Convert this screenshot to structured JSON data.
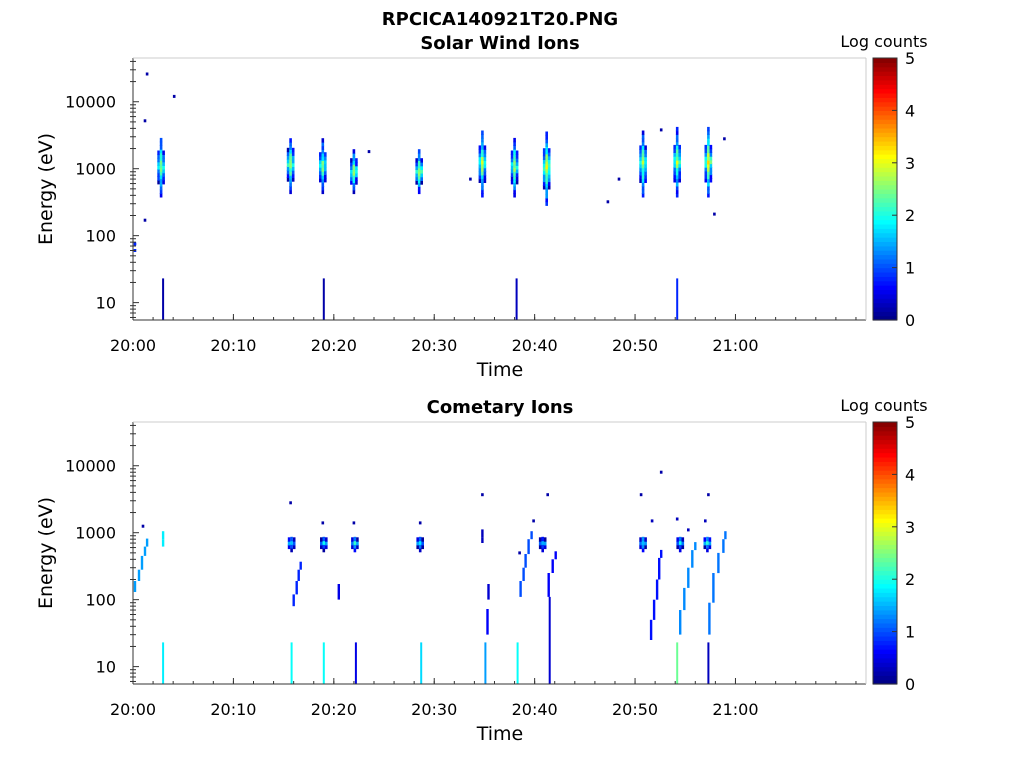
{
  "figure": {
    "title": "RPCICA140921T20.PNG"
  },
  "chart_data": [
    {
      "type": "heatmap",
      "title": "Solar Wind Ions",
      "xlabel": "Time",
      "ylabel": "Energy (eV)",
      "y_scale": "log",
      "ylim": [
        5.5,
        45000
      ],
      "x_time_range": [
        "20:00",
        "21:13"
      ],
      "x_ticks": [
        "20:00",
        "20:10",
        "20:20",
        "20:30",
        "20:40",
        "20:50",
        "21:00"
      ],
      "y_ticks": [
        "10",
        "100",
        "1000",
        "10000"
      ],
      "colorbar": {
        "title": "Log counts",
        "range": [
          0,
          5
        ],
        "ticks": [
          "0",
          "1",
          "2",
          "3",
          "4",
          "5"
        ],
        "colormap": "jet"
      },
      "bursts": [
        {
          "t": "20:02.8",
          "e_min": 400,
          "e_max": 3000,
          "peak": 2.6
        },
        {
          "t": "20:15.7",
          "e_min": 450,
          "e_max": 3000,
          "peak": 2.8
        },
        {
          "t": "20:18.9",
          "e_min": 450,
          "e_max": 2700,
          "peak": 2.6
        },
        {
          "t": "20:22.0",
          "e_min": 450,
          "e_max": 1900,
          "peak": 2.8
        },
        {
          "t": "20:28.5",
          "e_min": 450,
          "e_max": 1900,
          "peak": 2.9
        },
        {
          "t": "20:34.8",
          "e_min": 400,
          "e_max": 3700,
          "peak": 2.8
        },
        {
          "t": "20:38.0",
          "e_min": 400,
          "e_max": 3000,
          "peak": 2.7
        },
        {
          "t": "20:41.2",
          "e_min": 300,
          "e_max": 3700,
          "peak": 3.1
        },
        {
          "t": "20:50.8",
          "e_min": 400,
          "e_max": 3700,
          "peak": 2.7
        },
        {
          "t": "20:54.2",
          "e_min": 400,
          "e_max": 4000,
          "peak": 2.8
        },
        {
          "t": "20:57.3",
          "e_min": 400,
          "e_max": 4000,
          "peak": 3.2
        }
      ],
      "spikes": [
        {
          "t": "20:03.0",
          "e_min": 5.5,
          "e_max": 23,
          "value": 0.2
        },
        {
          "t": "20:19.0",
          "e_min": 5.5,
          "e_max": 23,
          "value": 0.2
        },
        {
          "t": "20:38.2",
          "e_min": 5.5,
          "e_max": 23,
          "value": 0.3
        },
        {
          "t": "20:54.2",
          "e_min": 5.5,
          "e_max": 23,
          "value": 0.8
        }
      ],
      "isolated_points": [
        {
          "t": "20:01.4",
          "e": 26000,
          "value": 0.2
        },
        {
          "t": "20:01.2",
          "e": 5200,
          "value": 0.2
        },
        {
          "t": "20:04.1",
          "e": 12000,
          "value": 0.2
        },
        {
          "t": "20:00.2",
          "e": 60,
          "value": 0.8
        },
        {
          "t": "20:00.2",
          "e": 75,
          "value": 0.8
        },
        {
          "t": "20:01.2",
          "e": 170,
          "value": 0.2
        },
        {
          "t": "20:23.5",
          "e": 1800,
          "value": 0.2
        },
        {
          "t": "20:33.6",
          "e": 700,
          "value": 0.2
        },
        {
          "t": "20:47.3",
          "e": 320,
          "value": 0.2
        },
        {
          "t": "20:48.4",
          "e": 700,
          "value": 0.2
        },
        {
          "t": "20:52.6",
          "e": 3800,
          "value": 0.2
        },
        {
          "t": "20:58.9",
          "e": 2800,
          "value": 0.2
        },
        {
          "t": "20:57.9",
          "e": 210,
          "value": 0.2
        }
      ]
    },
    {
      "type": "heatmap",
      "title": "Cometary Ions",
      "xlabel": "Time",
      "ylabel": "Energy (eV)",
      "y_scale": "log",
      "ylim": [
        5.5,
        45000
      ],
      "x_time_range": [
        "20:00",
        "21:13"
      ],
      "x_ticks": [
        "20:00",
        "20:10",
        "20:20",
        "20:30",
        "20:40",
        "20:50",
        "21:00"
      ],
      "y_ticks": [
        "10",
        "100",
        "1000",
        "10000"
      ],
      "colorbar": {
        "title": "Log counts",
        "range": [
          0,
          5
        ],
        "ticks": [
          "0",
          "1",
          "2",
          "3",
          "4",
          "5"
        ],
        "colormap": "jet"
      },
      "bursts": [
        {
          "t": "20:15.8",
          "e_min": 550,
          "e_max": 900,
          "peak": 1.9
        },
        {
          "t": "20:19.0",
          "e_min": 550,
          "e_max": 900,
          "peak": 1.9
        },
        {
          "t": "20:22.1",
          "e_min": 550,
          "e_max": 900,
          "peak": 1.9
        },
        {
          "t": "20:28.6",
          "e_min": 550,
          "e_max": 900,
          "peak": 1.9
        },
        {
          "t": "20:40.8",
          "e_min": 550,
          "e_max": 900,
          "peak": 1.8
        },
        {
          "t": "20:50.8",
          "e_min": 550,
          "e_max": 900,
          "peak": 1.9
        },
        {
          "t": "20:54.5",
          "e_min": 550,
          "e_max": 900,
          "peak": 1.8
        },
        {
          "t": "20:57.2",
          "e_min": 550,
          "e_max": 900,
          "peak": 1.9
        }
      ],
      "spikes": [
        {
          "t": "20:03.0",
          "e_min": 5.5,
          "e_max": 23,
          "value": 1.8
        },
        {
          "t": "20:15.8",
          "e_min": 5.5,
          "e_max": 23,
          "value": 1.9
        },
        {
          "t": "20:19.0",
          "e_min": 5.5,
          "e_max": 23,
          "value": 1.9
        },
        {
          "t": "20:22.2",
          "e_min": 5.5,
          "e_max": 23,
          "value": 0.5
        },
        {
          "t": "20:28.7",
          "e_min": 5.5,
          "e_max": 23,
          "value": 1.7
        },
        {
          "t": "20:35.1",
          "e_min": 5.5,
          "e_max": 23,
          "value": 1.4
        },
        {
          "t": "20:38.3",
          "e_min": 5.5,
          "e_max": 23,
          "value": 1.9
        },
        {
          "t": "20:41.5",
          "e_min": 5.5,
          "e_max": 110,
          "value": 0.4
        },
        {
          "t": "20:54.2",
          "e_min": 5.5,
          "e_max": 23,
          "value": 2.4
        },
        {
          "t": "20:57.3",
          "e_min": 5.5,
          "e_max": 23,
          "value": 0.3
        }
      ],
      "dispersive_tracks": [
        {
          "points": [
            [
              "20:00.2",
              130
            ],
            [
              "20:00.6",
              190
            ],
            [
              "20:00.9",
              280
            ],
            [
              "20:01.2",
              450
            ],
            [
              "20:01.4",
              620
            ]
          ],
          "value": 1.4
        },
        {
          "points": [
            [
              "20:03.0",
              620
            ],
            [
              "20:03.0",
              800
            ]
          ],
          "value": 1.8
        },
        {
          "points": [
            [
              "20:16.0",
              80
            ],
            [
              "20:16.3",
              120
            ],
            [
              "20:16.5",
              190
            ],
            [
              "20:16.7",
              280
            ]
          ],
          "value": 0.8
        },
        {
          "points": [
            [
              "20:20.5",
              100
            ],
            [
              "20:20.5",
              130
            ]
          ],
          "value": 0.5
        },
        {
          "points": [
            [
              "20:34.8",
              700
            ],
            [
              "20:34.8",
              850
            ]
          ],
          "value": 0.3
        },
        {
          "points": [
            [
              "20:35.3",
              30
            ],
            [
              "20:35.3",
              55
            ]
          ],
          "value": 0.6
        },
        {
          "points": [
            [
              "20:35.4",
              100
            ],
            [
              "20:35.4",
              130
            ]
          ],
          "value": 0.4
        },
        {
          "points": [
            [
              "20:38.6",
              110
            ],
            [
              "20:38.9",
              190
            ],
            [
              "20:39.1",
              300
            ],
            [
              "20:39.4",
              480
            ],
            [
              "20:39.7",
              800
            ]
          ],
          "value": 1.0
        },
        {
          "points": [
            [
              "20:41.4",
              110
            ],
            [
              "20:41.8",
              250
            ],
            [
              "20:42.1",
              400
            ]
          ],
          "value": 0.6
        },
        {
          "points": [
            [
              "20:51.6",
              25
            ],
            [
              "20:51.9",
              50
            ],
            [
              "20:52.2",
              100
            ],
            [
              "20:52.4",
              200
            ],
            [
              "20:52.6",
              420
            ]
          ],
          "value": 0.7
        },
        {
          "points": [
            [
              "20:54.5",
              30
            ],
            [
              "20:54.9",
              70
            ],
            [
              "20:55.3",
              150
            ],
            [
              "20:55.7",
              300
            ],
            [
              "20:56.0",
              550
            ]
          ],
          "value": 1.3
        },
        {
          "points": [
            [
              "20:57.4",
              30
            ],
            [
              "20:57.8",
              90
            ],
            [
              "20:58.3",
              250
            ],
            [
              "20:58.8",
              500
            ],
            [
              "20:59.0",
              800
            ]
          ],
          "value": 1.2
        }
      ],
      "isolated_points": [
        {
          "t": "20:01.0",
          "e": 1250,
          "value": 0.2
        },
        {
          "t": "20:15.7",
          "e": 2800,
          "value": 0.2
        },
        {
          "t": "20:18.9",
          "e": 1400,
          "value": 0.2
        },
        {
          "t": "20:22.0",
          "e": 1400,
          "value": 0.2
        },
        {
          "t": "20:28.6",
          "e": 1400,
          "value": 0.2
        },
        {
          "t": "20:34.8",
          "e": 3700,
          "value": 0.2
        },
        {
          "t": "20:38.5",
          "e": 500,
          "value": 0.2
        },
        {
          "t": "20:39.9",
          "e": 1500,
          "value": 0.2
        },
        {
          "t": "20:41.3",
          "e": 3700,
          "value": 0.2
        },
        {
          "t": "20:50.6",
          "e": 3700,
          "value": 0.2
        },
        {
          "t": "20:52.6",
          "e": 8000,
          "value": 0.2
        },
        {
          "t": "20:51.7",
          "e": 1500,
          "value": 0.3
        },
        {
          "t": "20:54.2",
          "e": 1600,
          "value": 0.3
        },
        {
          "t": "20:55.3",
          "e": 1100,
          "value": 0.3
        },
        {
          "t": "20:57.3",
          "e": 3700,
          "value": 0.2
        },
        {
          "t": "20:57.0",
          "e": 1500,
          "value": 0.3
        }
      ]
    }
  ]
}
